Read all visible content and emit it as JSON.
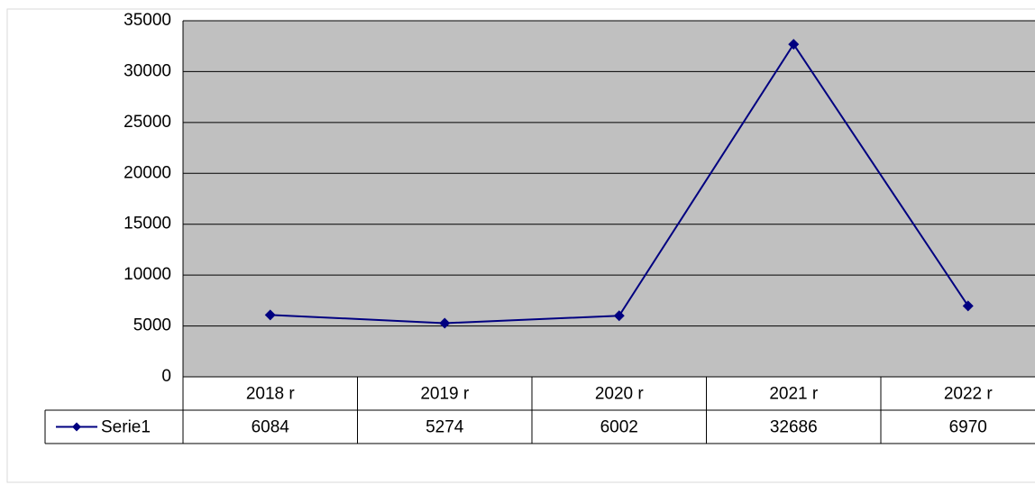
{
  "chart_data": {
    "type": "line",
    "categories": [
      "2018 r",
      "2019 r",
      "2020 r",
      "2021 r",
      "2022 r"
    ],
    "series": [
      {
        "name": "Serie1",
        "color": "#000080",
        "values": [
          6084,
          5274,
          6002,
          32686,
          6970
        ]
      }
    ],
    "ylim": [
      0,
      35000
    ],
    "yticks": [
      0,
      5000,
      10000,
      15000,
      20000,
      25000,
      30000,
      35000
    ],
    "grid": true,
    "plot_background": "#c0c0c0"
  }
}
